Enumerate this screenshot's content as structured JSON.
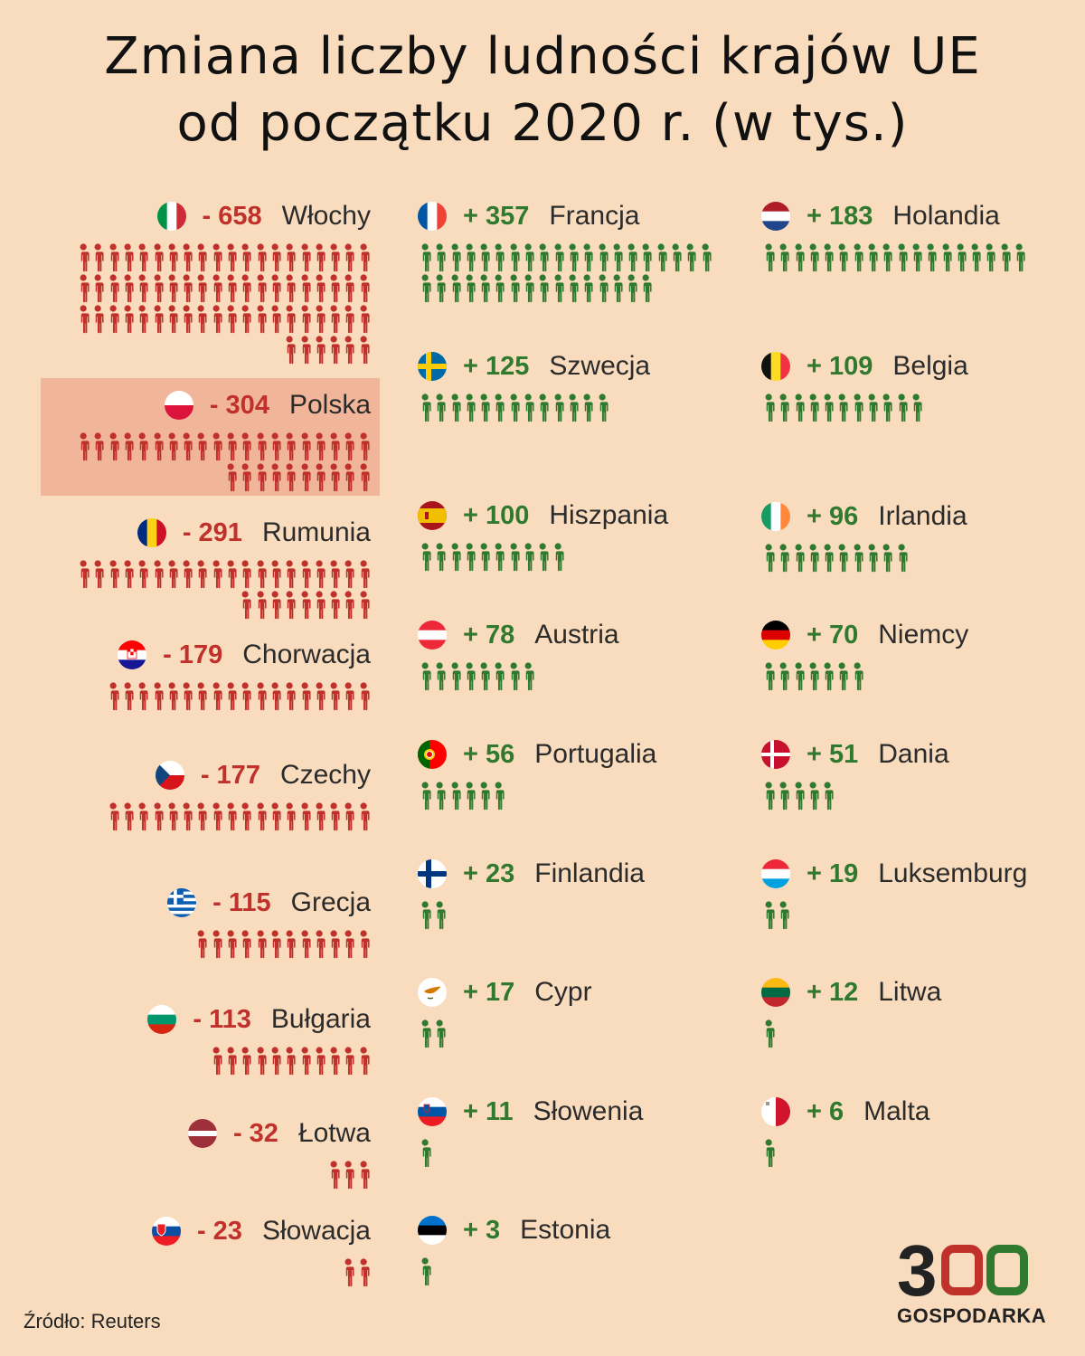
{
  "title": [
    "Zmiana liczby ludności krajów UE",
    "od początku 2020 r. (w tys.)"
  ],
  "source": "Źródło: Reuters",
  "logo": {
    "number": "300",
    "word": "GOSPODARKA"
  },
  "colors": {
    "background": "#f9dcbd",
    "negative": "#c0312b",
    "positive": "#2f7a2f",
    "highlight": "#f1b69a"
  },
  "chart_data": {
    "type": "pictogram",
    "unit": "tys.",
    "icon": "person-icon",
    "groups": [
      {
        "column": "left",
        "countries": [
          {
            "name": "Włochy",
            "label": "- 658",
            "value": -658,
            "flag": "italy"
          },
          {
            "name": "Polska",
            "label": "- 304",
            "value": -304,
            "flag": "poland",
            "highlight": true
          },
          {
            "name": "Rumunia",
            "label": "- 291",
            "value": -291,
            "flag": "romania"
          },
          {
            "name": "Chorwacja",
            "label": "- 179",
            "value": -179,
            "flag": "croatia"
          },
          {
            "name": "Czechy",
            "label": "- 177",
            "value": -177,
            "flag": "czechia"
          },
          {
            "name": "Grecja",
            "label": "- 115",
            "value": -115,
            "flag": "greece"
          },
          {
            "name": "Bułgaria",
            "label": "- 113",
            "value": -113,
            "flag": "bulgaria"
          },
          {
            "name": "Łotwa",
            "label": "- 32",
            "value": -32,
            "flag": "latvia"
          },
          {
            "name": "Słowacja",
            "label": "- 23",
            "value": -23,
            "flag": "slovakia"
          }
        ]
      },
      {
        "column": "mid",
        "countries": [
          {
            "name": "Francja",
            "label": "+ 357",
            "value": 357,
            "flag": "france"
          },
          {
            "name": "Szwecja",
            "label": "+ 125",
            "value": 125,
            "flag": "sweden"
          },
          {
            "name": "Hiszpania",
            "label": "+ 100",
            "value": 100,
            "flag": "spain"
          },
          {
            "name": "Austria",
            "label": "+ 78",
            "value": 78,
            "flag": "austria"
          },
          {
            "name": "Portugalia",
            "label": "+ 56",
            "value": 56,
            "flag": "portugal"
          },
          {
            "name": "Finlandia",
            "label": "+ 23",
            "value": 23,
            "flag": "finland"
          },
          {
            "name": "Cypr",
            "label": "+ 17",
            "value": 17,
            "flag": "cyprus"
          },
          {
            "name": "Słowenia",
            "label": "+ 11",
            "value": 11,
            "flag": "slovenia"
          },
          {
            "name": "Estonia",
            "label": "+ 3",
            "value": 3,
            "flag": "estonia"
          }
        ]
      },
      {
        "column": "right",
        "countries": [
          {
            "name": "Holandia",
            "label": "+ 183",
            "value": 183,
            "flag": "netherlands"
          },
          {
            "name": "Belgia",
            "label": "+ 109",
            "value": 109,
            "flag": "belgium"
          },
          {
            "name": "Irlandia",
            "label": "+ 96",
            "value": 96,
            "flag": "ireland"
          },
          {
            "name": "Niemcy",
            "label": "+ 70",
            "value": 70,
            "flag": "germany"
          },
          {
            "name": "Dania",
            "label": "+ 51",
            "value": 51,
            "flag": "denmark"
          },
          {
            "name": "Luksemburg",
            "label": "+ 19",
            "value": 19,
            "flag": "luxembourg"
          },
          {
            "name": "Litwa",
            "label": "+ 12",
            "value": 12,
            "flag": "lithuania"
          },
          {
            "name": "Malta",
            "label": "+ 6",
            "value": 6,
            "flag": "malta"
          }
        ]
      }
    ]
  }
}
